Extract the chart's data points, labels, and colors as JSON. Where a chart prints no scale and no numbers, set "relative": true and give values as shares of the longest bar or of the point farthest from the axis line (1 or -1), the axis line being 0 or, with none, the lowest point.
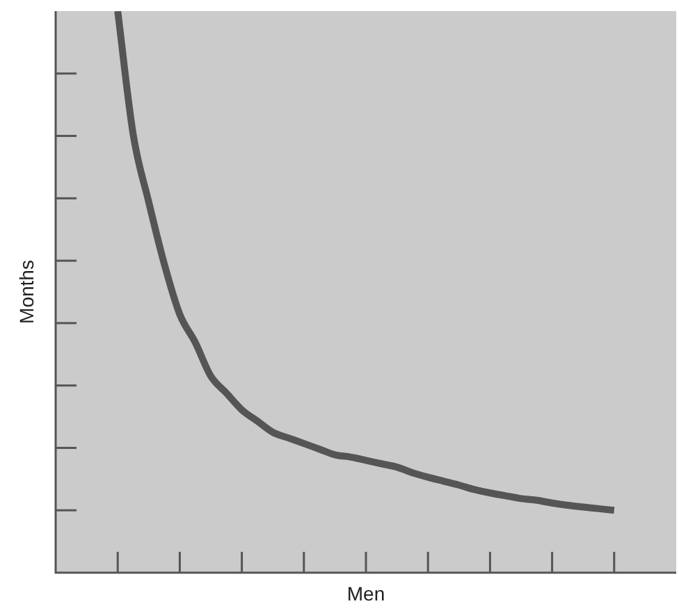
{
  "chart_data": {
    "type": "line",
    "relative": true,
    "xlabel": "Men",
    "ylabel": "Months",
    "categories": [
      null,
      null,
      null,
      null,
      null,
      null,
      null,
      null,
      null,
      null,
      null,
      null,
      null,
      null,
      null,
      null,
      null,
      null,
      null,
      null,
      null,
      null,
      null,
      null,
      null,
      null,
      null,
      null,
      null,
      null,
      null,
      null,
      null,
      null,
      null,
      null,
      null,
      null,
      null,
      null,
      null
    ],
    "series": [
      {
        "color": "#555555",
        "values": [
          null,
          null,
          null,
          null,
          1,
          0.78,
          0.66,
          0.55,
          0.46,
          0.41,
          0.35,
          0.32,
          0.29,
          0.27,
          0.25,
          0.24,
          0.23,
          0.22,
          0.21,
          0.206,
          0.2,
          0.194,
          0.188,
          0.178,
          0.17,
          0.163,
          0.156,
          0.148,
          0.142,
          0.137,
          0.132,
          0.129,
          0.124,
          0.12,
          0.117,
          0.114,
          0.111,
          null,
          null,
          null,
          null
        ]
      }
    ],
    "grid": false,
    "legend": false,
    "marker": "none",
    "line_style": "solid"
  }
}
